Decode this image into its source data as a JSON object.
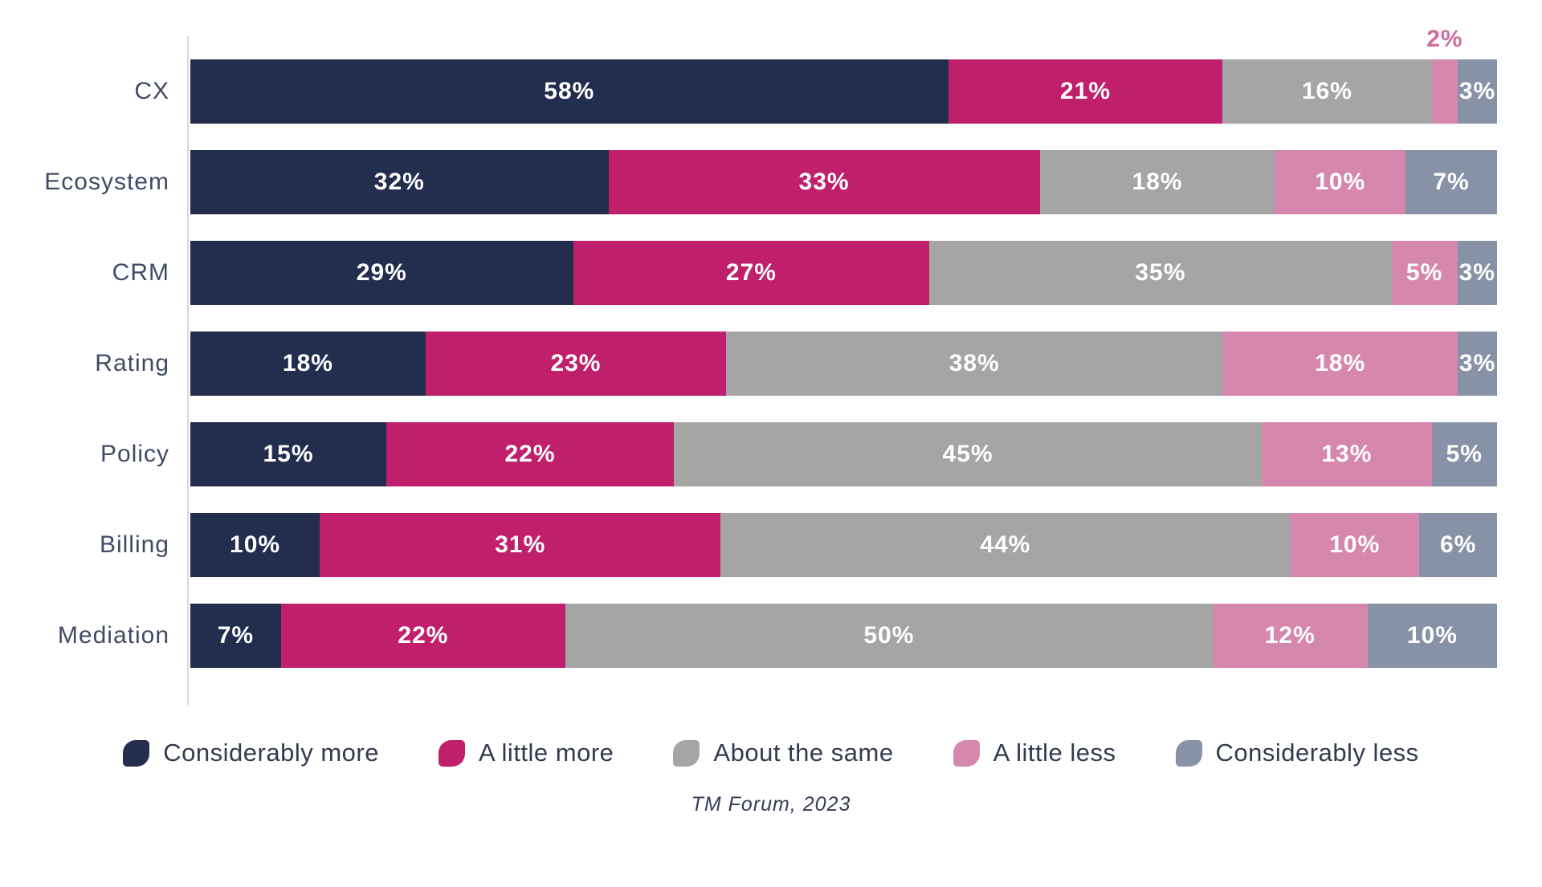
{
  "chart_data": {
    "type": "bar",
    "orientation": "horizontal",
    "stacked": true,
    "unit": "%",
    "grid": false,
    "legend_position": "bottom",
    "categories": [
      "CX",
      "Ecosystem",
      "CRM",
      "Rating",
      "Policy",
      "Billing",
      "Mediation"
    ],
    "series": [
      {
        "name": "Considerably more",
        "color": "#232e4f",
        "values": [
          58,
          32,
          29,
          18,
          15,
          10,
          7
        ]
      },
      {
        "name": "A little more",
        "color": "#c01f6b",
        "values": [
          21,
          33,
          27,
          23,
          22,
          31,
          22
        ]
      },
      {
        "name": "About the same",
        "color": "#a5a5a5",
        "values": [
          16,
          18,
          35,
          38,
          45,
          44,
          50
        ]
      },
      {
        "name": "A little less",
        "color": "#d687ad",
        "values": [
          2,
          10,
          5,
          18,
          13,
          10,
          12
        ]
      },
      {
        "name": "Considerably less",
        "color": "#8892a7",
        "values": [
          3,
          7,
          3,
          3,
          5,
          6,
          10
        ]
      }
    ],
    "value_label_format": "{v}%",
    "outside_label_threshold": 2,
    "outside_label_color": "#cf6f9f",
    "axis_line_color": "#d9d9d9",
    "source": "TM Forum, 2023"
  }
}
